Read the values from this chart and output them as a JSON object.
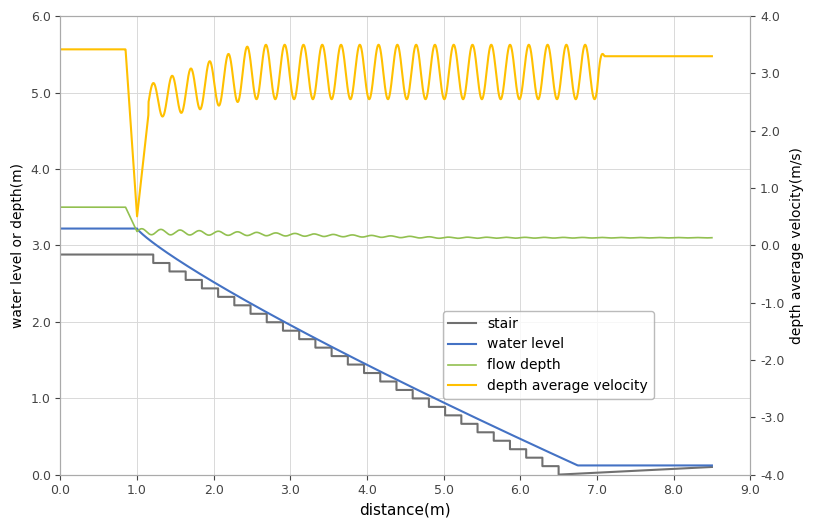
{
  "title": "",
  "xlabel": "distance(m)",
  "ylabel_left": "water level or depth(m)",
  "ylabel_right": "depth average velocity(m/s)",
  "xlim": [
    0.0,
    9.0
  ],
  "ylim_left": [
    0.0,
    6.0
  ],
  "ylim_right": [
    -4.0,
    4.0
  ],
  "xticks": [
    0.0,
    1.0,
    2.0,
    3.0,
    4.0,
    5.0,
    6.0,
    7.0,
    8.0,
    9.0
  ],
  "yticks_left": [
    0.0,
    1.0,
    2.0,
    3.0,
    4.0,
    5.0,
    6.0
  ],
  "yticks_right": [
    -4.0,
    -3.0,
    -2.0,
    -1.0,
    0.0,
    1.0,
    2.0,
    3.0,
    4.0
  ],
  "colors": {
    "stair": "#707070",
    "water_level": "#4472C4",
    "flow_depth": "#92C050",
    "velocity": "#FFC000",
    "background": "#FFFFFF",
    "grid": "#D9D9D9"
  },
  "legend": {
    "stair": "stair",
    "water_level": "water level",
    "flow_depth": "flow depth",
    "velocity": "depth average velocity"
  },
  "stair_n_steps": 26,
  "stair_x_start": 1.0,
  "stair_x_end": 6.5,
  "stair_y_start": 2.88,
  "stair_y_end": 0.0,
  "stair_flat_y": 0.1,
  "stair_flat_x_end": 8.5,
  "water_level_start_y": 3.22,
  "water_level_end_x": 6.75,
  "water_level_end_y": 0.12,
  "flow_depth_start": 3.5,
  "flow_depth_mid": 3.18,
  "flow_depth_end": 3.1,
  "vel_flat_start": 3.42,
  "vel_dip": 0.5,
  "vel_osc_period": 0.245,
  "vel_osc_peak": 3.5,
  "vel_osc_trough": 2.55,
  "vel_flat_end": 3.3
}
